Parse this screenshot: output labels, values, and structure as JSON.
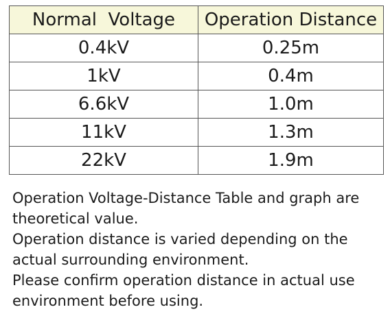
{
  "table": {
    "headers": [
      "Normal  Voltage",
      "Operation Distance"
    ],
    "rows": [
      [
        "0.4kV",
        "0.25m"
      ],
      [
        "1kV",
        "0.4m"
      ],
      [
        "6.6kV",
        "1.0m"
      ],
      [
        "11kV",
        "1.3m"
      ],
      [
        "22kV",
        "1.9m"
      ]
    ]
  },
  "notes": [
    "Operation Voltage-Distance Table and graph are",
    "theoretical value.",
    "Operation distance is varied depending on the",
    "actual surrounding environment.",
    "Please confirm operation distance in actual use",
    "environment before using."
  ],
  "colors": {
    "header_bg": "#f7f7da",
    "border": "#555555"
  }
}
